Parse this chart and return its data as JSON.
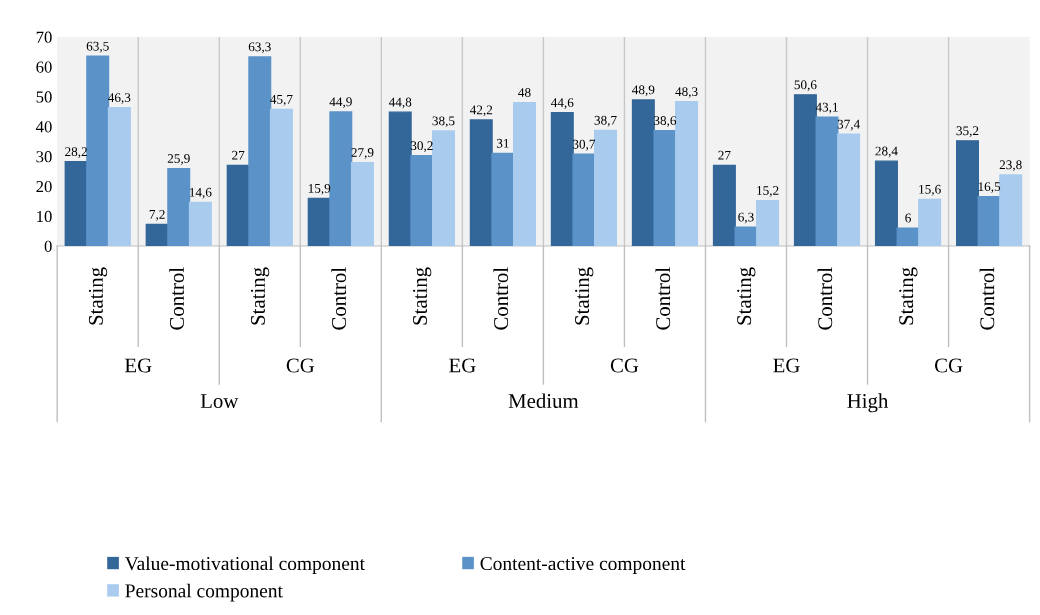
{
  "chart_data": {
    "type": "bar",
    "categories": [
      "Stating",
      "Control",
      "Stating",
      "Control",
      "Stating",
      "Control",
      "Stating",
      "Control",
      "Stating",
      "Control",
      "Stating",
      "Control"
    ],
    "series": [
      {
        "name": "Value-motivational component",
        "color": "#336699",
        "values": [
          28.2,
          7.2,
          27,
          15.9,
          44.8,
          42.2,
          44.6,
          48.9,
          27,
          50.6,
          28.4,
          35.2
        ],
        "value_labels": [
          "28,2",
          "7,2",
          "27",
          "15,9",
          "44,8",
          "42,2",
          "44,6",
          "48,9",
          "27",
          "50,6",
          "28,4",
          "35,2"
        ]
      },
      {
        "name": "Content-active component",
        "color": "#5b93c9",
        "values": [
          63.5,
          25.9,
          63.3,
          44.9,
          30.2,
          31,
          30.7,
          38.6,
          6.3,
          43.1,
          6,
          16.5
        ],
        "value_labels": [
          "63,5",
          "25,9",
          "63,3",
          "44,9",
          "30,2",
          "31",
          "30,7",
          "38,6",
          "6,3",
          "43,1",
          "6",
          "16,5"
        ]
      },
      {
        "name": "Personal component",
        "color": "#a8cbee",
        "values": [
          46.3,
          14.6,
          45.7,
          27.9,
          38.5,
          48,
          38.7,
          48.3,
          15.2,
          37.4,
          15.6,
          23.8
        ],
        "value_labels": [
          "46,3",
          "14,6",
          "45,7",
          "27,9",
          "38,5",
          "48",
          "38,7",
          "48,3",
          "15,2",
          "37,4",
          "15,6",
          "23,8"
        ]
      }
    ],
    "annotations": [
      "EG",
      "CG",
      "EG",
      "CG",
      "EG",
      "CG",
      "Low",
      "Medium",
      "High"
    ],
    "ylim": [
      0,
      70
    ],
    "yticks": [
      0,
      10,
      20,
      30,
      40,
      50,
      60,
      70
    ],
    "grid": "x",
    "legend": "bottom"
  }
}
